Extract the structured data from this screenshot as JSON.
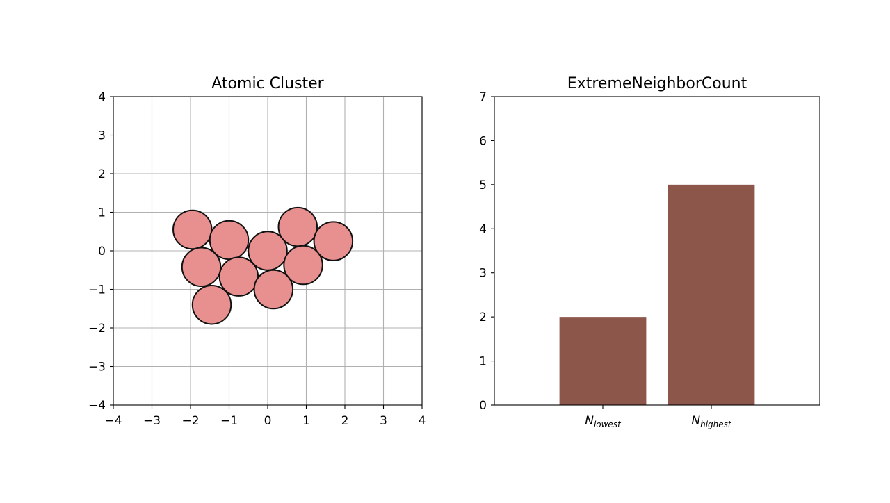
{
  "chart_data": [
    {
      "type": "scatter",
      "title": "Atomic Cluster",
      "xlabel": "",
      "ylabel": "",
      "xlim": [
        -4,
        4
      ],
      "ylim": [
        -4,
        4
      ],
      "xticks": [
        -4,
        -3,
        -2,
        -1,
        0,
        1,
        2,
        3,
        4
      ],
      "yticks": [
        -4,
        -3,
        -2,
        -1,
        0,
        1,
        2,
        3,
        4
      ],
      "xtick_labels": [
        "−4",
        "−3",
        "−2",
        "−1",
        "0",
        "1",
        "2",
        "3",
        "4"
      ],
      "ytick_labels": [
        "−4",
        "−3",
        "−2",
        "−1",
        "0",
        "1",
        "2",
        "3",
        "4"
      ],
      "grid": true,
      "marker": "circle",
      "atom_radius": 0.5,
      "atom_color": "#e89090",
      "edge_color": "#111111",
      "points": [
        {
          "x": -1.95,
          "y": 0.55
        },
        {
          "x": -1.0,
          "y": 0.28
        },
        {
          "x": 0.0,
          "y": 0.0
        },
        {
          "x": 0.78,
          "y": 0.62
        },
        {
          "x": 1.7,
          "y": 0.25
        },
        {
          "x": -1.72,
          "y": -0.42
        },
        {
          "x": -0.75,
          "y": -0.67
        },
        {
          "x": 0.92,
          "y": -0.37
        },
        {
          "x": 0.15,
          "y": -1.0
        },
        {
          "x": -1.45,
          "y": -1.4
        }
      ]
    },
    {
      "type": "bar",
      "title": "ExtremeNeighborCount",
      "xlabel": "",
      "ylabel": "",
      "ylim": [
        0,
        7
      ],
      "yticks": [
        0,
        1,
        2,
        3,
        4,
        5,
        6,
        7
      ],
      "xlim": [
        -1.0,
        2.0
      ],
      "categories": [
        {
          "base": "N",
          "sub": "lowest"
        },
        {
          "base": "N",
          "sub": "highest"
        }
      ],
      "values": [
        2,
        5
      ],
      "bar_width": 0.8,
      "bar_color": "#8c564b",
      "grid": false
    }
  ]
}
